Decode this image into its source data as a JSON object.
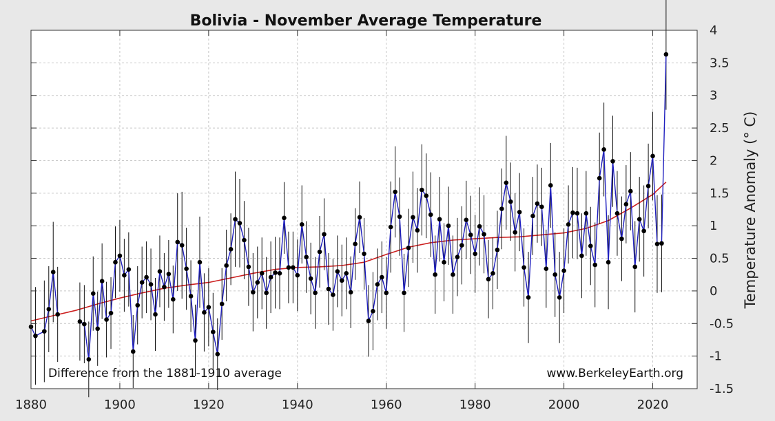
{
  "chart_data": {
    "type": "line",
    "title": "Bolivia - November Average Temperature",
    "ylabel": "Temperature Anomaly (° C)",
    "xlabel": "",
    "xlim": [
      1880,
      2030
    ],
    "ylim": [
      -1.5,
      4
    ],
    "xticks": [
      "1880",
      "1900",
      "1920",
      "1940",
      "1960",
      "1980",
      "2000",
      "2020"
    ],
    "yticks": [
      "-1.5",
      "-1",
      "-0.5",
      "0",
      "0.5",
      "1",
      "1.5",
      "2",
      "2.5",
      "3",
      "3.5",
      "4"
    ],
    "grid": true,
    "annotations": {
      "baseline": "Difference from the 1881-1910 average",
      "source": "www.BerkeleyEarth.org"
    },
    "colors": {
      "series": "#1f1fbf",
      "trend": "#cc2020",
      "points": "#000000",
      "errorbars": "#111111"
    },
    "series": [
      {
        "x": [
          1880,
          1881,
          1883,
          1884,
          1885,
          1886
        ],
        "values": [
          -0.55,
          -0.69,
          -0.62,
          -0.28,
          0.29,
          -0.36
        ],
        "err": [
          0.65,
          0.75,
          0.78,
          0.66,
          0.77,
          0.73
        ]
      },
      {
        "x": [
          1891,
          1892,
          1893,
          1894,
          1895,
          1896,
          1897,
          1898,
          1899,
          1900,
          1901,
          1902,
          1903,
          1904,
          1905,
          1906,
          1907,
          1908,
          1909,
          1910,
          1911,
          1912,
          1913,
          1914,
          1915,
          1916,
          1917,
          1918,
          1919,
          1920,
          1921,
          1922,
          1923,
          1924,
          1925,
          1926,
          1927,
          1928,
          1929,
          1930,
          1931,
          1932,
          1933,
          1934,
          1935,
          1936,
          1937,
          1938,
          1939,
          1940,
          1941,
          1942,
          1943,
          1944,
          1945,
          1946,
          1947,
          1948,
          1949,
          1950,
          1951,
          1952,
          1953,
          1954,
          1955,
          1956,
          1957,
          1958,
          1959,
          1960,
          1961,
          1962,
          1963,
          1964,
          1965,
          1966,
          1967,
          1968,
          1969,
          1970,
          1971,
          1972,
          1973,
          1974,
          1975,
          1976,
          1977,
          1978,
          1979,
          1980,
          1981,
          1982,
          1983,
          1984,
          1985,
          1986,
          1987,
          1988,
          1989,
          1990,
          1991,
          1992,
          1993,
          1994,
          1995,
          1996,
          1997,
          1998,
          1999,
          2000,
          2001,
          2002,
          2003,
          2004,
          2005,
          2006,
          2007,
          2008,
          2009,
          2010,
          2011,
          2012,
          2013,
          2014,
          2015,
          2016,
          2017,
          2018,
          2019,
          2020,
          2021,
          2022,
          2023
        ],
        "values": [
          -0.47,
          -0.51,
          -1.05,
          -0.04,
          -0.58,
          0.15,
          -0.44,
          -0.34,
          0.44,
          0.54,
          0.24,
          0.33,
          -0.93,
          -0.22,
          0.13,
          0.21,
          0.1,
          -0.36,
          0.3,
          0.06,
          0.26,
          -0.13,
          0.75,
          0.7,
          0.34,
          -0.08,
          -0.76,
          0.44,
          -0.33,
          -0.25,
          -0.63,
          -0.97,
          -0.2,
          0.39,
          0.64,
          1.1,
          1.04,
          0.78,
          0.37,
          -0.02,
          0.13,
          0.27,
          -0.03,
          0.21,
          0.28,
          0.27,
          1.12,
          0.36,
          0.36,
          0.24,
          1.02,
          0.52,
          0.19,
          -0.03,
          0.6,
          0.87,
          0.03,
          -0.06,
          0.3,
          0.16,
          0.27,
          -0.02,
          0.72,
          1.13,
          0.57,
          -0.46,
          -0.31,
          0.1,
          0.21,
          -0.03,
          0.98,
          1.52,
          1.14,
          -0.03,
          0.66,
          1.13,
          0.93,
          1.55,
          1.46,
          1.17,
          0.25,
          1.1,
          0.44,
          1.0,
          0.25,
          0.52,
          0.7,
          1.09,
          0.86,
          0.57,
          0.99,
          0.87,
          0.18,
          0.27,
          0.63,
          1.26,
          1.66,
          1.37,
          0.9,
          1.21,
          0.36,
          -0.1,
          1.15,
          1.34,
          1.29,
          0.34,
          1.62,
          0.25,
          -0.1,
          0.31,
          1.02,
          1.2,
          1.19,
          0.54,
          1.19,
          0.69,
          0.4,
          1.73,
          2.17,
          0.44,
          1.99,
          1.19,
          0.8,
          1.33,
          1.53,
          0.37,
          1.1,
          0.92,
          1.61,
          2.07,
          0.72,
          0.73,
          3.63
        ],
        "err": [
          0.6,
          0.6,
          0.58,
          0.57,
          0.57,
          0.58,
          0.58,
          0.55,
          0.55,
          0.55,
          0.56,
          0.57,
          0.56,
          0.6,
          0.55,
          0.55,
          0.55,
          0.56,
          0.55,
          0.52,
          0.52,
          0.52,
          0.75,
          0.82,
          0.63,
          0.55,
          0.55,
          0.7,
          0.6,
          0.6,
          0.6,
          0.55,
          0.55,
          0.55,
          0.55,
          0.73,
          0.68,
          0.6,
          0.6,
          0.6,
          0.55,
          0.55,
          0.55,
          0.55,
          0.55,
          0.55,
          0.55,
          0.55,
          0.55,
          0.55,
          0.6,
          0.55,
          0.55,
          0.55,
          0.55,
          0.55,
          0.55,
          0.55,
          0.55,
          0.55,
          0.55,
          0.55,
          0.55,
          0.55,
          0.55,
          0.55,
          0.6,
          0.55,
          0.55,
          0.55,
          0.7,
          0.7,
          0.6,
          0.6,
          0.6,
          0.7,
          0.65,
          0.7,
          0.65,
          0.65,
          0.6,
          0.65,
          0.6,
          0.6,
          0.6,
          0.6,
          0.6,
          0.6,
          0.6,
          0.6,
          0.6,
          0.6,
          0.6,
          0.55,
          0.6,
          0.62,
          0.72,
          0.6,
          0.6,
          0.6,
          0.6,
          0.7,
          0.6,
          0.6,
          0.6,
          0.6,
          0.65,
          0.65,
          0.7,
          0.65,
          0.6,
          0.7,
          0.7,
          0.65,
          0.65,
          0.6,
          0.65,
          0.7,
          0.72,
          0.72,
          0.7,
          0.65,
          0.65,
          0.6,
          0.6,
          0.7,
          0.65,
          0.7,
          0.65,
          0.68,
          0.75,
          0.75,
          0.85
        ]
      }
    ],
    "trend": {
      "x": [
        1880,
        1885,
        1890,
        1895,
        1900,
        1905,
        1910,
        1915,
        1920,
        1925,
        1930,
        1935,
        1940,
        1945,
        1950,
        1955,
        1960,
        1965,
        1970,
        1975,
        1980,
        1985,
        1990,
        1995,
        2000,
        2005,
        2010,
        2015,
        2020,
        2023
      ],
      "values": [
        -0.46,
        -0.38,
        -0.3,
        -0.2,
        -0.11,
        -0.03,
        0.04,
        0.09,
        0.13,
        0.2,
        0.27,
        0.33,
        0.36,
        0.37,
        0.39,
        0.44,
        0.56,
        0.67,
        0.74,
        0.78,
        0.8,
        0.82,
        0.83,
        0.86,
        0.89,
        0.96,
        1.08,
        1.27,
        1.48,
        1.67
      ]
    }
  }
}
